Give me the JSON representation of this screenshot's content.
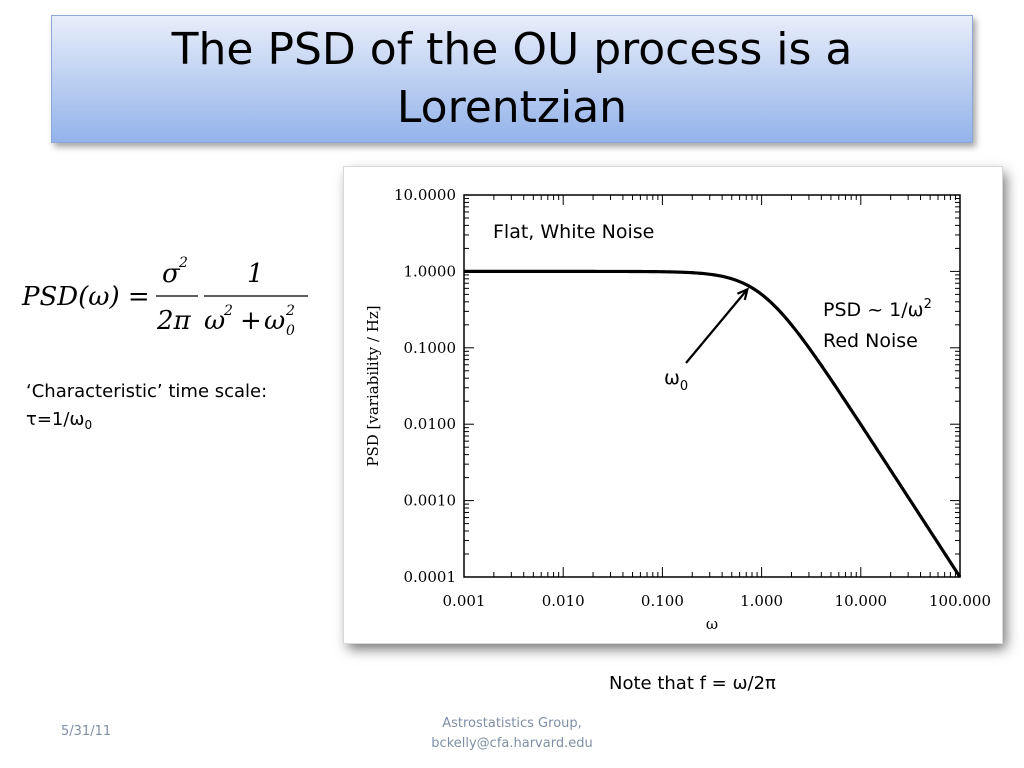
{
  "slide": {
    "title": "The PSD of the OU process is a Lorentzian",
    "characteristic_line1": "‘Characteristic’ time scale:",
    "tau_prefix": "τ=1/ω",
    "tau_sub": "0",
    "note": "Note that f = ω/2π",
    "date": "5/31/11",
    "footer_line1": "Astrostatistics Group,",
    "footer_line2": "bckelly@cfa.harvard.edu"
  },
  "equation": {
    "lhs": "PSD(ω) =",
    "frac1_num": "σ",
    "frac1_num_sup": "2",
    "frac1_den": "2π",
    "frac2_num": "1",
    "frac2_den_a": "ω",
    "frac2_den_a_sup": "2",
    "frac2_den_plus": "+",
    "frac2_den_b": "ω",
    "frac2_den_b_sup": "2",
    "frac2_den_b_sub": "0"
  },
  "chart_data": {
    "type": "line",
    "xlabel": "ω",
    "ylabel": "PSD [variability / Hz]",
    "xscale": "log",
    "yscale": "log",
    "xlim": [
      0.001,
      100
    ],
    "ylim": [
      0.0001,
      10
    ],
    "xticks": [
      0.001,
      0.01,
      0.1,
      1,
      10,
      100
    ],
    "xtick_labels": [
      "0.001",
      "0.010",
      "0.100",
      "1.000",
      "10.000",
      "100.000"
    ],
    "yticks": [
      0.0001,
      0.001,
      0.01,
      0.1,
      1,
      10
    ],
    "ytick_labels": [
      "0.0001",
      "0.0010",
      "0.0100",
      "0.1000",
      "1.0000",
      "10.0000"
    ],
    "curve": {
      "formula": "1 / (1 + (x/w0)^2)",
      "w0": 1,
      "x": [
        0.001,
        0.01,
        0.1,
        0.3,
        0.5,
        1,
        2,
        3,
        10,
        30,
        100
      ],
      "y": [
        1.0,
        1.0,
        0.99,
        0.917,
        0.8,
        0.5,
        0.2,
        0.1,
        0.0099,
        0.0011,
        0.0001
      ]
    },
    "annotations": {
      "flat": "Flat, White Noise",
      "red_line1_prefix": "PSD ~ 1/ω",
      "red_line1_sup": "2",
      "red_line2": "Red Noise",
      "omega0_base": "ω",
      "omega0_sub": "0"
    }
  }
}
